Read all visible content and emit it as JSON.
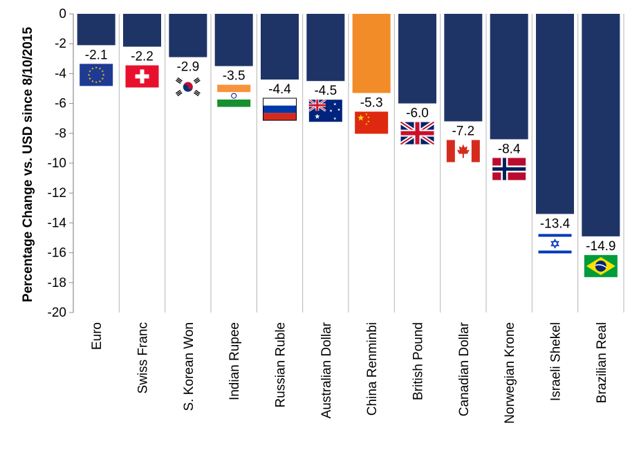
{
  "chart_data": {
    "type": "bar",
    "ylabel": "Percentage Change vs. USD since 8/10/2015",
    "ylim": [
      -20,
      0
    ],
    "yticks": [
      0,
      -2,
      -4,
      -6,
      -8,
      -10,
      -12,
      -14,
      -16,
      -18,
      -20
    ],
    "categories": [
      "Euro",
      "Swiss Franc",
      "S. Korean Won",
      "Indian Rupee",
      "Russian Ruble",
      "Australian Dollar",
      "China Renminbi",
      "British Pound",
      "Canadian Dollar",
      "Norwegian Krone",
      "Israeli Shekel",
      "Brazilian Real"
    ],
    "values": [
      -2.1,
      -2.2,
      -2.9,
      -3.5,
      -4.4,
      -4.5,
      -5.3,
      -6.0,
      -7.2,
      -8.4,
      -13.4,
      -14.9
    ],
    "value_labels": [
      "-2.1",
      "-2.2",
      "-2.9",
      "-3.5",
      "-4.4",
      "-4.5",
      "-5.3",
      "-6.0",
      "-7.2",
      "-8.4",
      "-13.4",
      "-14.9"
    ],
    "flags": [
      "eu-flag-icon",
      "switzerland-flag-icon",
      "south-korea-flag-icon",
      "india-flag-icon",
      "russia-flag-icon",
      "australia-flag-icon",
      "china-flag-icon",
      "uk-flag-icon",
      "canada-flag-icon",
      "norway-flag-icon",
      "israel-flag-icon",
      "brazil-flag-icon"
    ],
    "colors": {
      "default": "#1f3466",
      "highlight": "#f28c28",
      "grid": "#b5b5b5"
    },
    "highlight_category": "China Renminbi",
    "grid": "vertical-separators"
  }
}
